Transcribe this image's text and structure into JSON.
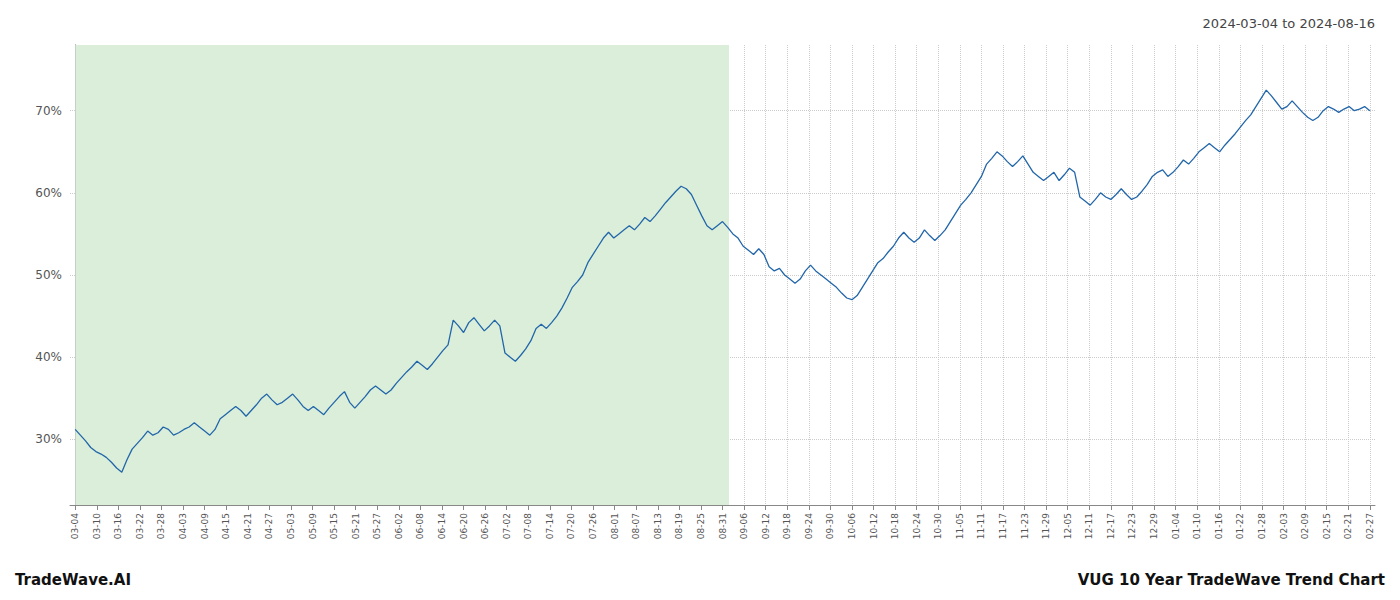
{
  "chart_data": {
    "type": "line",
    "title": "VUG 10 Year TradeWave Trend Chart",
    "subtitle": "2024-03-04 to 2024-08-16",
    "annotations": [
      {
        "text": "TradeWave.AI"
      }
    ],
    "color": "#2266aa",
    "grid": true,
    "regions": [
      {
        "x": [
          0,
          126.25
        ],
        "color": "#daeeda"
      }
    ],
    "xlim": [
      -1,
      251
    ],
    "xticks": [
      {
        "value": 0,
        "label": "03-04"
      },
      {
        "value": 4.1666666667,
        "label": "03-10"
      },
      {
        "value": 8.3333333333,
        "label": "03-16"
      },
      {
        "value": 12.5,
        "label": "03-22"
      },
      {
        "value": 16.6666666667,
        "label": "03-28"
      },
      {
        "value": 20.8333333333,
        "label": "04-03"
      },
      {
        "value": 25,
        "label": "04-09"
      },
      {
        "value": 29.1666666667,
        "label": "04-15"
      },
      {
        "value": 33.3333333333,
        "label": "04-21"
      },
      {
        "value": 37.5,
        "label": "04-27"
      },
      {
        "value": 41.6666666667,
        "label": "05-03"
      },
      {
        "value": 45.8333333333,
        "label": "05-09"
      },
      {
        "value": 50,
        "label": "05-15"
      },
      {
        "value": 54.1666666667,
        "label": "05-21"
      },
      {
        "value": 58.3333333333,
        "label": "05-27"
      },
      {
        "value": 62.5,
        "label": "06-02"
      },
      {
        "value": 66.6666666667,
        "label": "06-08"
      },
      {
        "value": 70.8333333333,
        "label": "06-14"
      },
      {
        "value": 75,
        "label": "06-20"
      },
      {
        "value": 79.1666666667,
        "label": "06-26"
      },
      {
        "value": 83.3333333333,
        "label": "07-02"
      },
      {
        "value": 87.5,
        "label": "07-08"
      },
      {
        "value": 91.6666666667,
        "label": "07-14"
      },
      {
        "value": 95.8333333333,
        "label": "07-20"
      },
      {
        "value": 100,
        "label": "07-26"
      },
      {
        "value": 104.1666666667,
        "label": "08-01"
      },
      {
        "value": 108.3333333333,
        "label": "08-07"
      },
      {
        "value": 112.5,
        "label": "08-13"
      },
      {
        "value": 116.6666666667,
        "label": "08-19"
      },
      {
        "value": 120.8333333333,
        "label": "08-25"
      },
      {
        "value": 125,
        "label": "08-31"
      },
      {
        "value": 129.1666666667,
        "label": "09-06"
      },
      {
        "value": 133.3333333333,
        "label": "09-12"
      },
      {
        "value": 137.5,
        "label": "09-18"
      },
      {
        "value": 141.6666666667,
        "label": "09-24"
      },
      {
        "value": 145.8333333333,
        "label": "09-30"
      },
      {
        "value": 150,
        "label": "10-06"
      },
      {
        "value": 154.1666666667,
        "label": "10-12"
      },
      {
        "value": 158.3333333333,
        "label": "10-18"
      },
      {
        "value": 162.5,
        "label": "10-24"
      },
      {
        "value": 166.6666666667,
        "label": "10-30"
      },
      {
        "value": 170.8333333333,
        "label": "11-05"
      },
      {
        "value": 175,
        "label": "11-11"
      },
      {
        "value": 179.1666666667,
        "label": "11-17"
      },
      {
        "value": 183.3333333333,
        "label": "11-23"
      },
      {
        "value": 187.5,
        "label": "11-29"
      },
      {
        "value": 191.6666666667,
        "label": "12-05"
      },
      {
        "value": 195.8333333333,
        "label": "12-11"
      },
      {
        "value": 200,
        "label": "12-17"
      },
      {
        "value": 204.1666666667,
        "label": "12-23"
      },
      {
        "value": 208.3333333333,
        "label": "12-29"
      },
      {
        "value": 212.5,
        "label": "01-04"
      },
      {
        "value": 216.6666666667,
        "label": "01-10"
      },
      {
        "value": 220.8333333333,
        "label": "01-16"
      },
      {
        "value": 225,
        "label": "01-22"
      },
      {
        "value": 229.1666666667,
        "label": "01-28"
      },
      {
        "value": 233.3333333333,
        "label": "02-03"
      },
      {
        "value": 237.5,
        "label": "02-09"
      },
      {
        "value": 241.6666666667,
        "label": "02-15"
      },
      {
        "value": 245.8333333333,
        "label": "02-21"
      },
      {
        "value": 250,
        "label": "02-27"
      }
    ],
    "ylim": [
      22,
      78
    ],
    "yticks": [
      {
        "value": 30,
        "label": "30%"
      },
      {
        "value": 40,
        "label": "40%"
      },
      {
        "value": 50,
        "label": "50%"
      },
      {
        "value": 60,
        "label": "60%"
      },
      {
        "value": 70,
        "label": "70%"
      }
    ],
    "x": [
      0,
      1,
      2,
      3,
      4,
      5,
      6,
      7,
      8,
      9,
      10,
      11,
      12,
      13,
      14,
      15,
      16,
      17,
      18,
      19,
      20,
      21,
      22,
      23,
      24,
      25,
      26,
      27,
      28,
      29,
      30,
      31,
      32,
      33,
      34,
      35,
      36,
      37,
      38,
      39,
      40,
      41,
      42,
      43,
      44,
      45,
      46,
      47,
      48,
      49,
      50,
      51,
      52,
      53,
      54,
      55,
      56,
      57,
      58,
      59,
      60,
      61,
      62,
      63,
      64,
      65,
      66,
      67,
      68,
      69,
      70,
      71,
      72,
      73,
      74,
      75,
      76,
      77,
      78,
      79,
      80,
      81,
      82,
      83,
      84,
      85,
      86,
      87,
      88,
      89,
      90,
      91,
      92,
      93,
      94,
      95,
      96,
      97,
      98,
      99,
      100,
      101,
      102,
      103,
      104,
      105,
      106,
      107,
      108,
      109,
      110,
      111,
      112,
      113,
      114,
      115,
      116,
      117,
      118,
      119,
      120,
      121,
      122,
      123,
      124,
      125,
      126,
      127,
      128,
      129,
      130,
      131,
      132,
      133,
      134,
      135,
      136,
      137,
      138,
      139,
      140,
      141,
      142,
      143,
      144,
      145,
      146,
      147,
      148,
      149,
      150,
      151,
      152,
      153,
      154,
      155,
      156,
      157,
      158,
      159,
      160,
      161,
      162,
      163,
      164,
      165,
      166,
      167,
      168,
      169,
      170,
      171,
      172,
      173,
      174,
      175,
      176,
      177,
      178,
      179,
      180,
      181,
      182,
      183,
      184,
      185,
      186,
      187,
      188,
      189,
      190,
      191,
      192,
      193,
      194,
      195,
      196,
      197,
      198,
      199,
      200,
      201,
      202,
      203,
      204,
      205,
      206,
      207,
      208,
      209,
      210,
      211,
      212,
      213,
      214,
      215,
      216,
      217,
      218,
      219,
      220,
      221,
      222,
      223,
      224,
      225,
      226,
      227,
      228,
      229,
      230,
      231,
      232,
      233,
      234,
      235,
      236,
      237,
      238,
      239,
      240,
      241,
      242,
      243,
      244,
      245,
      246,
      247,
      248,
      249,
      250
    ],
    "values": [
      31.2,
      30.5,
      29.8,
      29.0,
      28.5,
      28.2,
      27.8,
      27.2,
      26.5,
      26.0,
      27.5,
      28.8,
      29.5,
      30.2,
      31.0,
      30.5,
      30.8,
      31.5,
      31.2,
      30.5,
      30.8,
      31.2,
      31.5,
      32.0,
      31.5,
      31.0,
      30.5,
      31.2,
      32.5,
      33.0,
      33.5,
      34.0,
      33.5,
      32.8,
      33.5,
      34.2,
      35.0,
      35.5,
      34.8,
      34.2,
      34.5,
      35.0,
      35.5,
      34.8,
      34.0,
      33.5,
      34.0,
      33.5,
      33.0,
      33.8,
      34.5,
      35.2,
      35.8,
      34.5,
      33.8,
      34.5,
      35.2,
      36.0,
      36.5,
      36.0,
      35.5,
      36.0,
      36.8,
      37.5,
      38.2,
      38.8,
      39.5,
      39.0,
      38.5,
      39.2,
      40.0,
      40.8,
      41.5,
      44.5,
      43.8,
      43.0,
      44.2,
      44.8,
      44.0,
      43.2,
      43.8,
      44.5,
      43.8,
      40.5,
      40.0,
      39.5,
      40.2,
      41.0,
      42.0,
      43.5,
      44.0,
      43.5,
      44.2,
      45.0,
      46.0,
      47.2,
      48.5,
      49.2,
      50.0,
      51.5,
      52.5,
      53.5,
      54.5,
      55.2,
      54.5,
      55.0,
      55.5,
      56.0,
      55.5,
      56.2,
      57.0,
      56.5,
      57.2,
      58.0,
      58.8,
      59.5,
      60.2,
      60.8,
      60.5,
      59.8,
      58.5,
      57.2,
      56.0,
      55.5,
      56.0,
      56.5,
      55.8,
      55.0,
      54.5,
      53.5,
      53.0,
      52.5,
      53.2,
      52.5,
      51.0,
      50.5,
      50.8,
      50.0,
      49.5,
      49.0,
      49.5,
      50.5,
      51.2,
      50.5,
      50.0,
      49.5,
      49.0,
      48.5,
      47.8,
      47.2,
      47.0,
      47.5,
      48.5,
      49.5,
      50.5,
      51.5,
      52.0,
      52.8,
      53.5,
      54.5,
      55.2,
      54.5,
      54.0,
      54.5,
      55.5,
      54.8,
      54.2,
      54.8,
      55.5,
      56.5,
      57.5,
      58.5,
      59.2,
      60.0,
      61.0,
      62.0,
      63.5,
      64.2,
      65.0,
      64.5,
      63.8,
      63.2,
      63.8,
      64.5,
      63.5,
      62.5,
      62.0,
      61.5,
      62.0,
      62.5,
      61.5,
      62.2,
      63.0,
      62.5,
      59.5,
      59.0,
      58.5,
      59.2,
      60.0,
      59.5,
      59.2,
      59.8,
      60.5,
      59.8,
      59.2,
      59.5,
      60.2,
      61.0,
      62.0,
      62.5,
      62.8,
      62.0,
      62.5,
      63.2,
      64.0,
      63.5,
      64.2,
      65.0,
      65.5,
      66.0,
      65.5,
      65.0,
      65.8,
      66.5,
      67.2,
      68.0,
      68.8,
      69.5,
      70.5,
      71.5,
      72.5,
      71.8,
      71.0,
      70.2,
      70.5,
      71.2,
      70.5,
      69.8,
      69.2,
      68.8,
      69.2,
      70.0,
      70.5,
      70.2,
      69.8,
      70.2,
      70.5,
      70.0,
      70.2,
      70.5,
      70.0
    ]
  }
}
